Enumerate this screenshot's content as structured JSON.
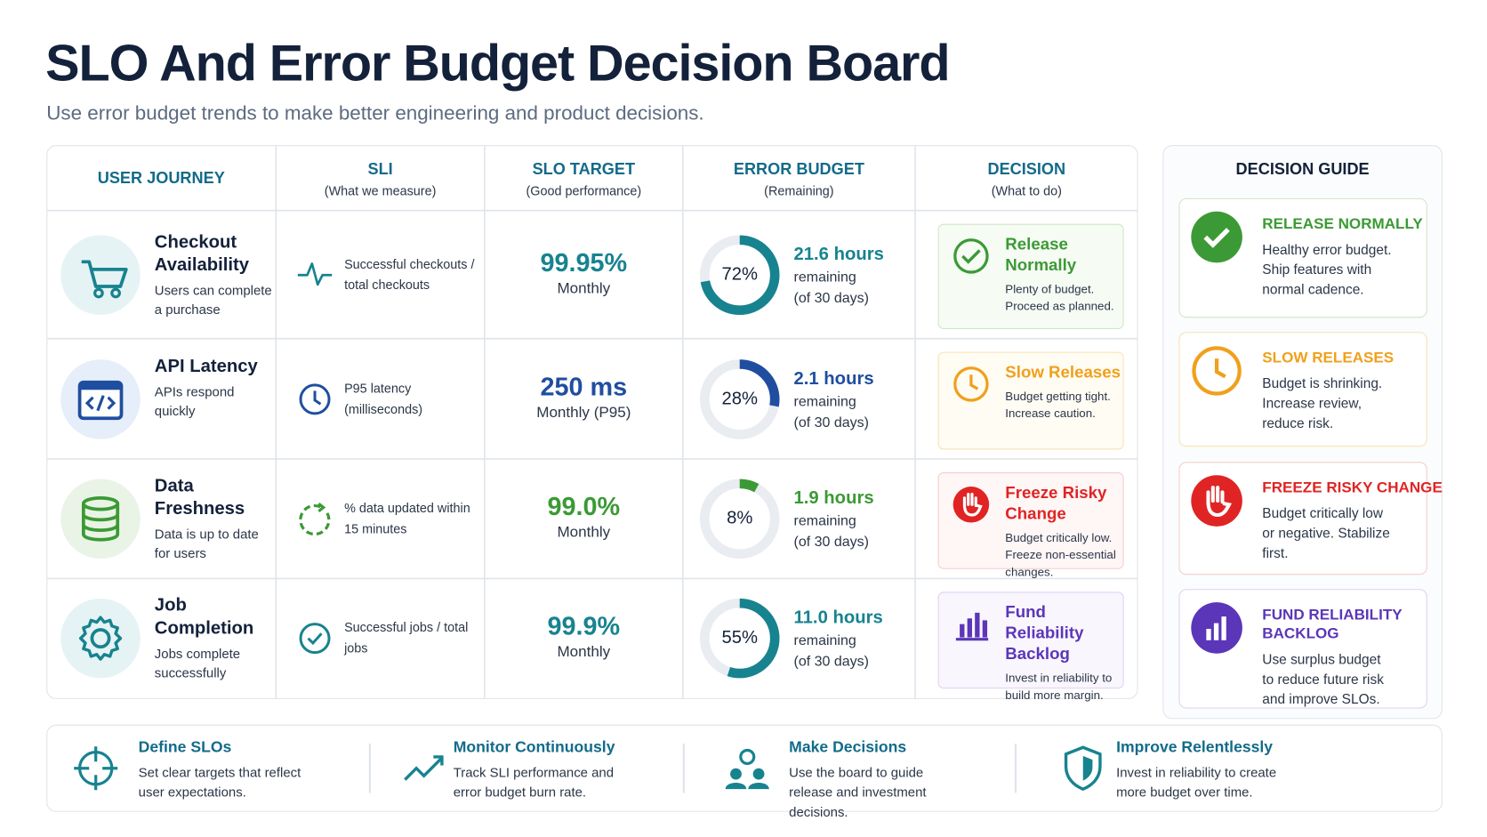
{
  "header": {
    "title": "SLO And Error Budget Decision Board",
    "subtitle": "Use error budget trends to make better engineering and product decisions."
  },
  "table": {
    "columns": [
      {
        "title": "USER JOURNEY"
      },
      {
        "title": "SLI",
        "sub": "(What we measure)"
      },
      {
        "title": "SLO TARGET",
        "sub": "(Good performance)"
      },
      {
        "title": "ERROR BUDGET",
        "sub": "(Remaining)"
      },
      {
        "title": "DECISION",
        "sub": "(What to do)"
      }
    ],
    "rows": [
      {
        "journey": "Checkout Availability",
        "description": "Users can complete a purchase",
        "sli": "Successful checkouts / total checkouts",
        "target": "99.95%",
        "period": "Monthly",
        "budget": {
          "value": 72,
          "label": "72%"
        },
        "hours": "21.6 hours",
        "remaining": "remaining",
        "of": "(of 30 days)",
        "decision": {
          "title": "Release Normally",
          "text": "Plenty of budget. Proceed as planned."
        }
      },
      {
        "journey": "API Latency",
        "description": "APIs respond quickly",
        "sli": "P95 latency (milliseconds)",
        "target": "250 ms",
        "period": "Monthly (P95)",
        "budget": {
          "value": 28,
          "label": "28%"
        },
        "hours": "2.1 hours",
        "remaining": "remaining",
        "of": "(of 30 days)",
        "decision": {
          "title": "Slow Releases",
          "text": "Budget getting tight. Increase caution."
        }
      },
      {
        "journey": "Data Freshness",
        "description": "Data is up to date for users",
        "sli": "% data updated within 15 minutes",
        "target": "99.0%",
        "period": "Monthly",
        "budget": {
          "value": 8,
          "label": "8%"
        },
        "hours": "1.9 hours",
        "remaining": "remaining",
        "of": "(of 30 days)",
        "decision": {
          "title": "Freeze Risky Change",
          "text": "Budget critically low. Freeze non-essential changes."
        }
      },
      {
        "journey": "Job Completion",
        "description": "Jobs complete successfully",
        "sli": "Successful jobs / total jobs",
        "target": "99.9%",
        "period": "Monthly",
        "budget": {
          "value": 55,
          "label": "55%"
        },
        "hours": "11.0 hours",
        "remaining": "remaining",
        "of": "(of 30 days)",
        "decision": {
          "title": "Fund Reliability Backlog",
          "text": "Invest in reliability to build more margin."
        }
      }
    ]
  },
  "guide": {
    "title": "DECISION GUIDE",
    "items": [
      {
        "title": "RELEASE NORMALLY",
        "text": "Healthy error budget. Ship features with normal cadence."
      },
      {
        "title": "SLOW RELEASES",
        "text": "Budget is shrinking. Increase review, reduce risk."
      },
      {
        "title": "FREEZE RISKY CHANGE",
        "text": "Budget critically low or negative. Stabilize first."
      },
      {
        "title": "FUND RELIABILITY BACKLOG",
        "text": "Use surplus budget to reduce future risk and improve SLOs."
      }
    ]
  },
  "footer": {
    "items": [
      {
        "title": "Define SLOs",
        "text": "Set clear targets that reflect user expectations."
      },
      {
        "title": "Monitor Continuously",
        "text": "Track SLI performance and error budget burn rate."
      },
      {
        "title": "Make Decisions",
        "text": "Use the board to guide release and investment decisions."
      },
      {
        "title": "Improve Relentlessly",
        "text": "Invest in reliability to create more budget over time."
      }
    ]
  }
}
